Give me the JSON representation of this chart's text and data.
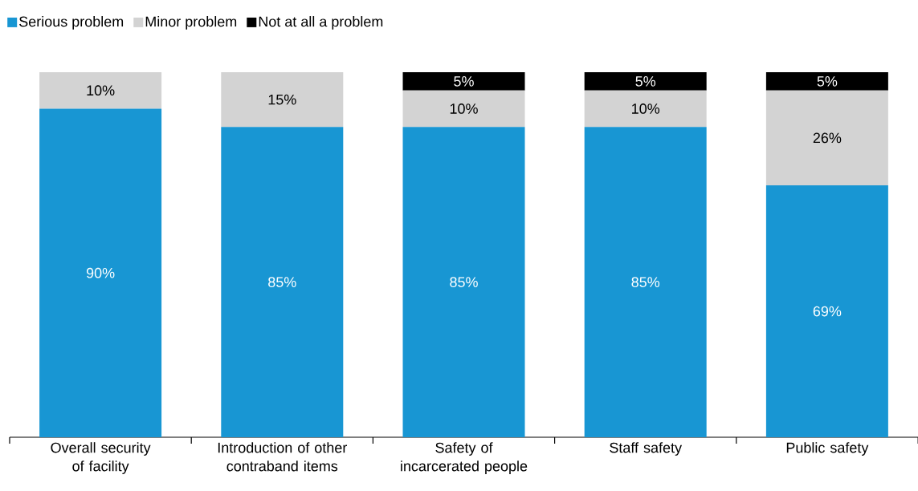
{
  "chart_data": {
    "type": "bar",
    "stacked": true,
    "legend": "top left",
    "categories": [
      "Overall security of facility",
      "Introduction of other contraband items",
      "Safety of incarcerated people",
      "Staff safety",
      "Public safety"
    ],
    "series": [
      {
        "name": "Serious problem",
        "color": "#1896d3",
        "values": [
          90,
          85,
          85,
          85,
          69
        ],
        "value_labels": [
          "90%",
          "85%",
          "85%",
          "85%",
          "69%"
        ]
      },
      {
        "name": "Minor problem",
        "color": "#d3d3d3",
        "values": [
          10,
          15,
          10,
          10,
          26
        ],
        "value_labels": [
          "10%",
          "15%",
          "10%",
          "10%",
          "26%"
        ]
      },
      {
        "name": "Not at all a problem",
        "color": "#000000",
        "values": [
          null,
          null,
          5,
          5,
          5
        ],
        "value_labels": [
          null,
          null,
          "5%",
          "5%",
          "5%"
        ]
      }
    ]
  }
}
